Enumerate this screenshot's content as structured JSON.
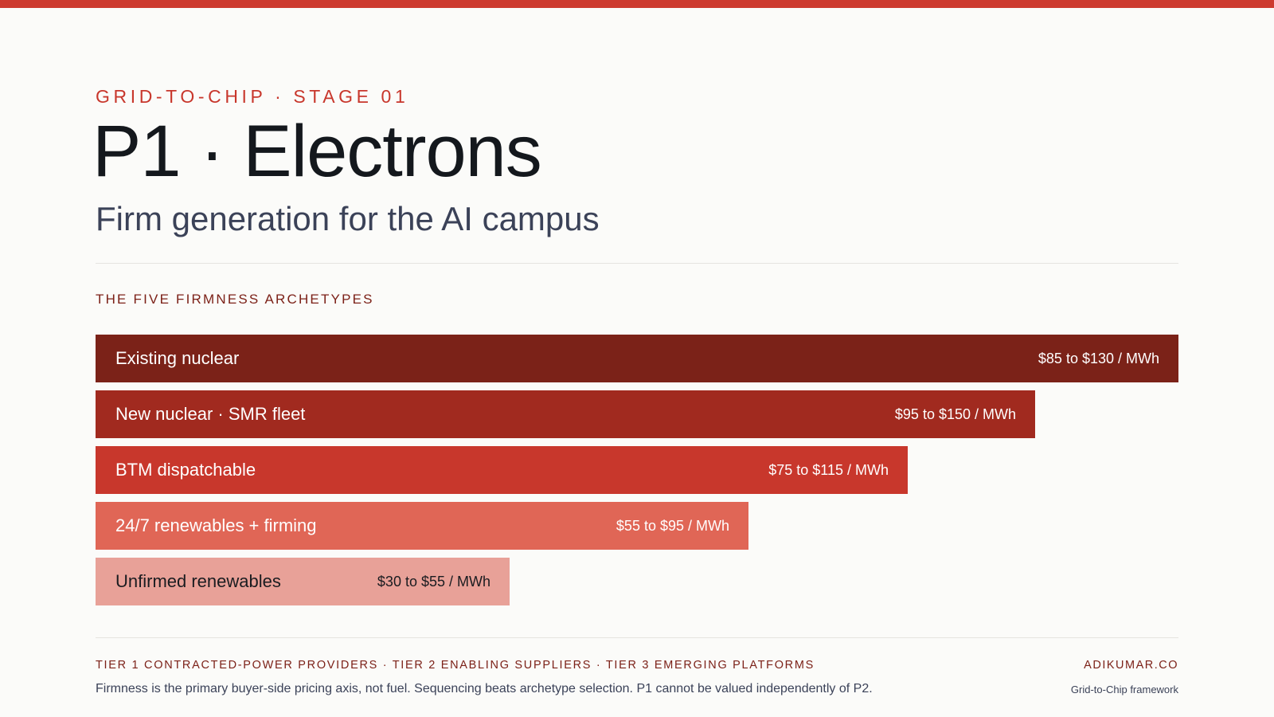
{
  "theme": {
    "accent": "#cd3a2f"
  },
  "header": {
    "eyebrow": "GRID-TO-CHIP · STAGE 01",
    "title": "P1 · Electrons",
    "subtitle": "Firm generation for the AI campus"
  },
  "section": {
    "label": "THE FIVE FIRMNESS ARCHETYPES"
  },
  "chart_data": {
    "type": "bar",
    "categories": [
      "Existing nuclear",
      "New nuclear · SMR fleet",
      "BTM dispatchable",
      "24/7 renewables + firming",
      "Unfirmed renewables"
    ],
    "price_labels": [
      "$85 to $130 / MWh",
      "$95 to $150 / MWh",
      "$75 to $115 / MWh",
      "$55 to $95 / MWh",
      "$30 to $55 / MWh"
    ],
    "values": [
      1.0,
      0.868,
      0.75,
      0.603,
      0.382
    ],
    "colors": [
      "#7b2218",
      "#a12a1f",
      "#c8372c",
      "#e06656",
      "#e8a198"
    ],
    "text_colors": [
      "#ffffff",
      "#ffffff",
      "#ffffff",
      "#ffffff",
      "#1a1c20"
    ]
  },
  "footer": {
    "tiers": "TIER 1 CONTRACTED-POWER PROVIDERS · TIER 2 ENABLING SUPPLIERS · TIER 3 EMERGING PLATFORMS",
    "note": "Firmness is the primary buyer-side pricing axis, not fuel. Sequencing beats archetype selection. P1 cannot be valued independently of P2.",
    "brand": "ADIKUMAR.CO",
    "brand_sub": "Grid-to-Chip framework"
  }
}
